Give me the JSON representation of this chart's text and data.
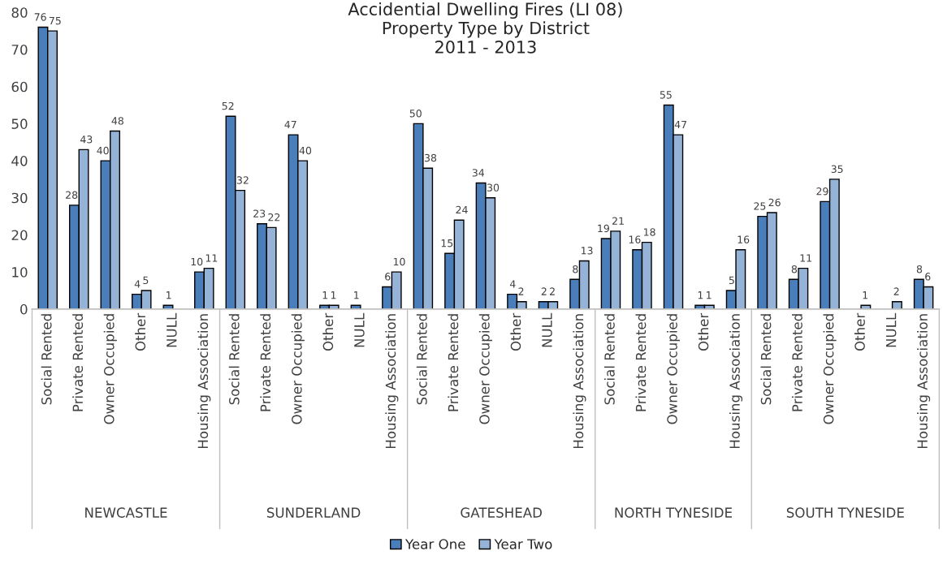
{
  "chart_data": {
    "type": "bar",
    "title": "Accidential Dwelling Fires (LI 08)\nProperty Type by District\n2011 - 2013",
    "categories": [
      "Social Rented",
      "Private Rented",
      "Owner Occupied",
      "Other",
      "NULL",
      "Housing Association",
      "Social Rented",
      "Private Rented",
      "Owner Occupied",
      "Other",
      "NULL",
      "Housing Association",
      "Social Rented",
      "Private Rented",
      "Owner Occupied",
      "Other",
      "NULL",
      "Housing Association",
      "Social Rented",
      "Private Rented",
      "Owner Occupied",
      "Other",
      "Housing Association",
      "Social Rented",
      "Private Rented",
      "Owner Occupied",
      "Other",
      "NULL",
      "Housing Association"
    ],
    "series": [
      {
        "name": "Year One",
        "color": "#4a7ebb",
        "values": [
          76,
          28,
          40,
          4,
          1,
          10,
          52,
          23,
          47,
          1,
          1,
          6,
          50,
          15,
          34,
          4,
          2,
          8,
          19,
          16,
          55,
          1,
          5,
          25,
          8,
          29,
          null,
          null,
          8
        ]
      },
      {
        "name": "Year Two",
        "color": "#95b3d7",
        "values": [
          75,
          43,
          48,
          5,
          null,
          11,
          32,
          22,
          40,
          1,
          null,
          10,
          38,
          24,
          30,
          2,
          2,
          13,
          21,
          18,
          47,
          1,
          16,
          26,
          11,
          35,
          1,
          2,
          6
        ]
      }
    ],
    "annotations": [
      "NEWCASTLE",
      "SUNDERLAND",
      "GATESHEAD",
      "NORTH TYNESIDE",
      "SOUTH TYNESIDE"
    ],
    "ylim": [
      0,
      80
    ],
    "yticks": [
      0,
      10,
      20,
      30,
      40,
      50,
      60,
      70,
      80
    ],
    "data_labels": true,
    "grid": false,
    "legend": "bottom"
  }
}
